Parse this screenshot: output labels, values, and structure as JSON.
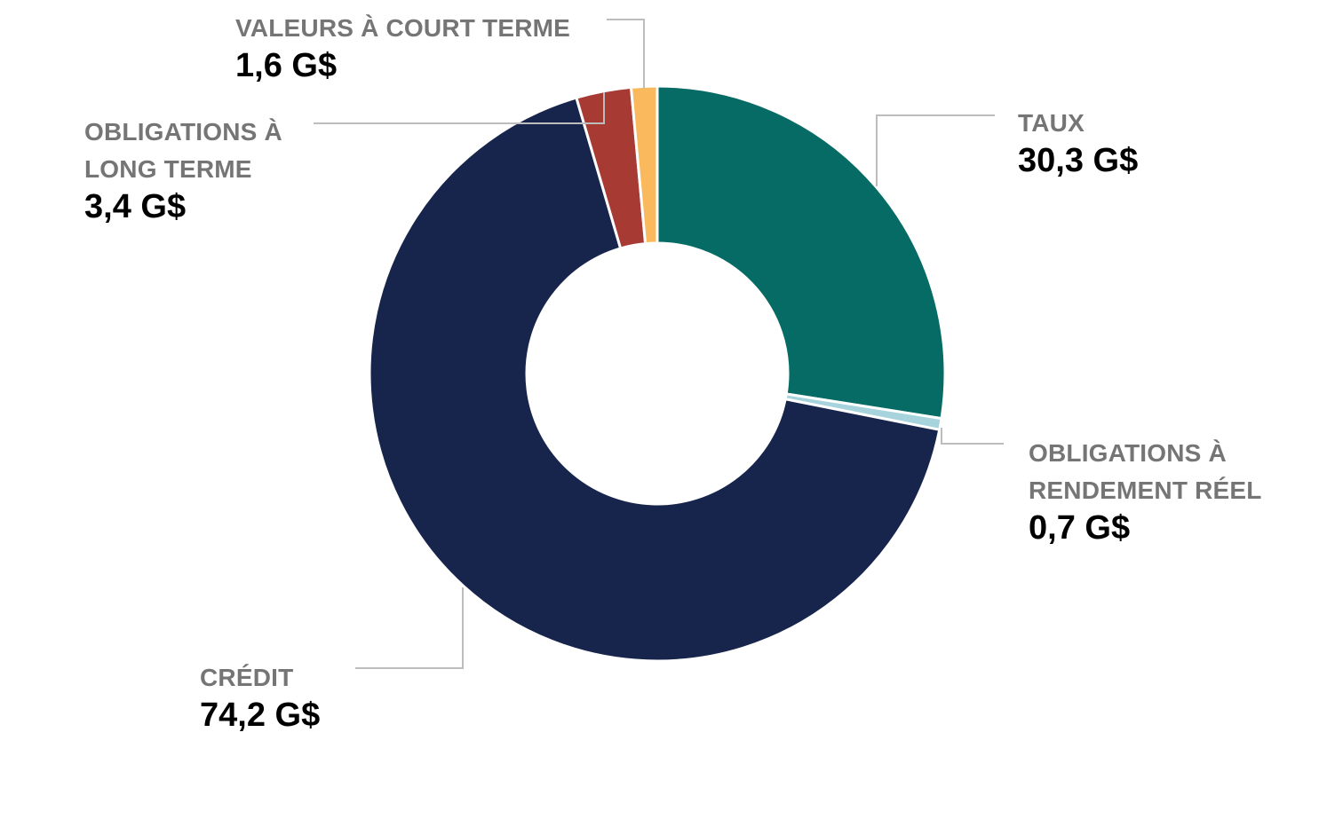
{
  "chart_data": {
    "type": "pie",
    "donut": true,
    "start_angle": "12 o'clock",
    "direction": "clockwise",
    "slices": [
      {
        "label": "TAUX",
        "value": 30.3,
        "value_label": "30,3 G$",
        "color": "#066b65"
      },
      {
        "label": "OBLIGATIONS À RENDEMENT RÉEL",
        "label_lines": [
          "OBLIGATIONS À",
          "RENDEMENT RÉEL"
        ],
        "value": 0.7,
        "value_label": "0,7 G$",
        "color": "#a7d3dc"
      },
      {
        "label": "CRÉDIT",
        "value": 74.2,
        "value_label": "74,2 G$",
        "color": "#17254c"
      },
      {
        "label": "OBLIGATIONS À LONG TERME",
        "label_lines": [
          "OBLIGATIONS À",
          "LONG TERME"
        ],
        "value": 3.4,
        "value_label": "3,4 G$",
        "color": "#a83a34"
      },
      {
        "label": "VALEURS À COURT TERME",
        "value": 1.6,
        "value_label": "1,6 G$",
        "color": "#f9b95c"
      }
    ]
  }
}
